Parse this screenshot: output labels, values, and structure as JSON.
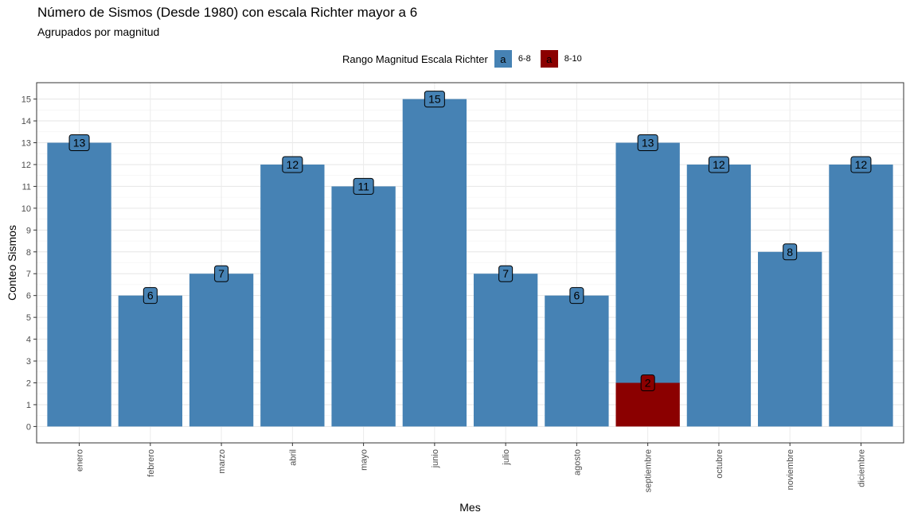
{
  "chart_data": {
    "type": "bar",
    "title": "Número de Sismos (Desde 1980) con escala Richter mayor a 6",
    "subtitle": "Agrupados por magnitud",
    "xlabel": "Mes",
    "ylabel": "Conteo Sismos",
    "categories": [
      "enero",
      "febrero",
      "marzo",
      "abril",
      "mayo",
      "junio",
      "julio",
      "agosto",
      "septiembre",
      "octubre",
      "noviembre",
      "diciembre"
    ],
    "series": [
      {
        "name": "6-8",
        "color": "#4682B4",
        "values": [
          13,
          6,
          7,
          12,
          11,
          15,
          7,
          6,
          13,
          12,
          8,
          12
        ]
      },
      {
        "name": "8-10",
        "color": "#8B0000",
        "values": [
          0,
          0,
          0,
          0,
          0,
          0,
          0,
          0,
          2,
          0,
          0,
          0
        ]
      }
    ],
    "stacked": true,
    "data_labels": [
      {
        "category": "enero",
        "label": "13",
        "value": 13
      },
      {
        "category": "febrero",
        "label": "6",
        "value": 6
      },
      {
        "category": "marzo",
        "label": "7",
        "value": 7
      },
      {
        "category": "abril",
        "label": "12",
        "value": 12
      },
      {
        "category": "mayo",
        "label": "11",
        "value": 11
      },
      {
        "category": "junio",
        "label": "15",
        "value": 15
      },
      {
        "category": "julio",
        "label": "7",
        "value": 7
      },
      {
        "category": "agosto",
        "label": "6",
        "value": 6
      },
      {
        "category": "septiembre",
        "label": "13",
        "value": 13
      },
      {
        "category": "septiembre",
        "label": "2",
        "value": 2
      },
      {
        "category": "octubre",
        "label": "12",
        "value": 12
      },
      {
        "category": "noviembre",
        "label": "8",
        "value": 8
      },
      {
        "category": "diciembre",
        "label": "12",
        "value": 12
      }
    ],
    "yticks": [
      0,
      1,
      2,
      3,
      4,
      5,
      6,
      7,
      8,
      9,
      10,
      11,
      12,
      13,
      14,
      15
    ],
    "ylim": [
      -0.75,
      15.75
    ],
    "grid": true,
    "legend": {
      "title": "Rango Magnitud Escala Richter",
      "position": "top",
      "key_glyph": "a",
      "entries": [
        {
          "label": "6-8",
          "color": "#4682B4"
        },
        {
          "label": "8-10",
          "color": "#8B0000"
        }
      ]
    }
  }
}
